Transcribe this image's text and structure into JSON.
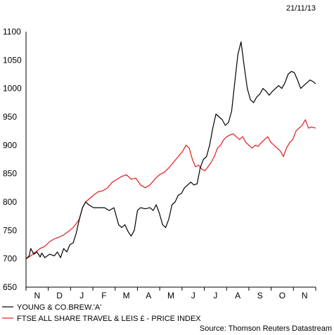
{
  "chart_data": {
    "type": "line",
    "date": "21/11/13",
    "source": "Source: Thomson Reuters Datastream",
    "x_tick_labels": [
      "N",
      "D",
      "J",
      "F",
      "M",
      "A",
      "M",
      "J",
      "J",
      "A",
      "S",
      "O",
      "N"
    ],
    "ylim": [
      650,
      1100
    ],
    "y_ticks": [
      650,
      700,
      750,
      800,
      850,
      900,
      950,
      1000,
      1050,
      1100
    ],
    "grid": false,
    "legend_position": "bottom-left",
    "series": [
      {
        "name": "YOUNG & CO.BREW.'A'",
        "color": "#000000",
        "values": [
          [
            0.0,
            700
          ],
          [
            0.2,
            705
          ],
          [
            0.3,
            718
          ],
          [
            0.5,
            708
          ],
          [
            0.7,
            712
          ],
          [
            0.9,
            703
          ],
          [
            1.0,
            710
          ],
          [
            1.2,
            702
          ],
          [
            1.5,
            708
          ],
          [
            1.8,
            705
          ],
          [
            2.0,
            712
          ],
          [
            2.2,
            702
          ],
          [
            2.4,
            718
          ],
          [
            2.6,
            712
          ],
          [
            2.8,
            725
          ],
          [
            3.0,
            728
          ],
          [
            3.2,
            745
          ],
          [
            3.4,
            770
          ],
          [
            3.6,
            790
          ],
          [
            3.8,
            800
          ],
          [
            4.0,
            795
          ],
          [
            4.3,
            790
          ],
          [
            4.6,
            790
          ],
          [
            5.0,
            790
          ],
          [
            5.3,
            785
          ],
          [
            5.6,
            790
          ],
          [
            5.9,
            760
          ],
          [
            6.1,
            755
          ],
          [
            6.3,
            760
          ],
          [
            6.5,
            748
          ],
          [
            6.7,
            740
          ],
          [
            6.9,
            750
          ],
          [
            7.1,
            785
          ],
          [
            7.3,
            790
          ],
          [
            7.6,
            788
          ],
          [
            7.9,
            790
          ],
          [
            8.1,
            785
          ],
          [
            8.3,
            795
          ],
          [
            8.5,
            780
          ],
          [
            8.7,
            760
          ],
          [
            8.9,
            755
          ],
          [
            9.1,
            770
          ],
          [
            9.3,
            795
          ],
          [
            9.5,
            800
          ],
          [
            9.7,
            812
          ],
          [
            9.9,
            815
          ],
          [
            10.1,
            825
          ],
          [
            10.3,
            830
          ],
          [
            10.5,
            835
          ],
          [
            10.7,
            830
          ],
          [
            10.9,
            832
          ],
          [
            11.1,
            860
          ],
          [
            11.3,
            875
          ],
          [
            11.5,
            880
          ],
          [
            11.7,
            900
          ],
          [
            11.9,
            930
          ],
          [
            12.1,
            955
          ],
          [
            12.3,
            950
          ],
          [
            12.5,
            945
          ],
          [
            12.7,
            935
          ],
          [
            12.9,
            940
          ],
          [
            13.1,
            960
          ],
          [
            13.3,
            1010
          ],
          [
            13.5,
            1060
          ],
          [
            13.7,
            1082
          ],
          [
            13.9,
            1040
          ],
          [
            14.1,
            1000
          ],
          [
            14.3,
            980
          ],
          [
            14.5,
            975
          ],
          [
            14.7,
            985
          ],
          [
            14.9,
            990
          ],
          [
            15.1,
            1000
          ],
          [
            15.3,
            995
          ],
          [
            15.5,
            988
          ],
          [
            15.7,
            995
          ],
          [
            15.9,
            1000
          ],
          [
            16.1,
            1005
          ],
          [
            16.3,
            1000
          ],
          [
            16.5,
            1010
          ],
          [
            16.7,
            1025
          ],
          [
            16.9,
            1030
          ],
          [
            17.1,
            1028
          ],
          [
            17.3,
            1015
          ],
          [
            17.5,
            1000
          ],
          [
            17.7,
            1005
          ],
          [
            17.9,
            1010
          ],
          [
            18.1,
            1015
          ],
          [
            18.3,
            1012
          ],
          [
            18.45,
            1008
          ]
        ]
      },
      {
        "name": "FTSE ALL SHARE TRAVEL & LEIS £ - PRICE INDEX",
        "color": "#e31a1c",
        "values": [
          [
            0.0,
            700
          ],
          [
            0.3,
            705
          ],
          [
            0.6,
            712
          ],
          [
            0.9,
            718
          ],
          [
            1.2,
            722
          ],
          [
            1.5,
            730
          ],
          [
            1.8,
            735
          ],
          [
            2.1,
            738
          ],
          [
            2.4,
            742
          ],
          [
            2.7,
            748
          ],
          [
            3.0,
            755
          ],
          [
            3.2,
            762
          ],
          [
            3.4,
            770
          ],
          [
            3.6,
            790
          ],
          [
            3.8,
            800
          ],
          [
            4.0,
            805
          ],
          [
            4.3,
            812
          ],
          [
            4.6,
            818
          ],
          [
            4.9,
            820
          ],
          [
            5.2,
            825
          ],
          [
            5.5,
            835
          ],
          [
            5.8,
            840
          ],
          [
            6.1,
            845
          ],
          [
            6.4,
            848
          ],
          [
            6.7,
            840
          ],
          [
            7.0,
            842
          ],
          [
            7.3,
            830
          ],
          [
            7.6,
            825
          ],
          [
            7.9,
            830
          ],
          [
            8.2,
            840
          ],
          [
            8.5,
            848
          ],
          [
            8.8,
            852
          ],
          [
            9.1,
            860
          ],
          [
            9.4,
            870
          ],
          [
            9.7,
            880
          ],
          [
            10.0,
            890
          ],
          [
            10.2,
            900
          ],
          [
            10.4,
            895
          ],
          [
            10.6,
            875
          ],
          [
            10.8,
            862
          ],
          [
            11.0,
            865
          ],
          [
            11.2,
            858
          ],
          [
            11.4,
            855
          ],
          [
            11.6,
            862
          ],
          [
            11.8,
            870
          ],
          [
            12.0,
            880
          ],
          [
            12.2,
            895
          ],
          [
            12.4,
            900
          ],
          [
            12.6,
            910
          ],
          [
            12.8,
            915
          ],
          [
            13.0,
            918
          ],
          [
            13.2,
            920
          ],
          [
            13.4,
            915
          ],
          [
            13.6,
            910
          ],
          [
            13.8,
            915
          ],
          [
            14.0,
            905
          ],
          [
            14.2,
            900
          ],
          [
            14.4,
            895
          ],
          [
            14.6,
            900
          ],
          [
            14.8,
            898
          ],
          [
            15.0,
            905
          ],
          [
            15.2,
            910
          ],
          [
            15.4,
            915
          ],
          [
            15.6,
            905
          ],
          [
            15.8,
            900
          ],
          [
            16.0,
            895
          ],
          [
            16.2,
            890
          ],
          [
            16.4,
            880
          ],
          [
            16.6,
            895
          ],
          [
            16.8,
            905
          ],
          [
            17.0,
            910
          ],
          [
            17.2,
            925
          ],
          [
            17.4,
            930
          ],
          [
            17.6,
            935
          ],
          [
            17.8,
            945
          ],
          [
            18.0,
            930
          ],
          [
            18.2,
            932
          ],
          [
            18.45,
            930
          ]
        ]
      }
    ]
  }
}
